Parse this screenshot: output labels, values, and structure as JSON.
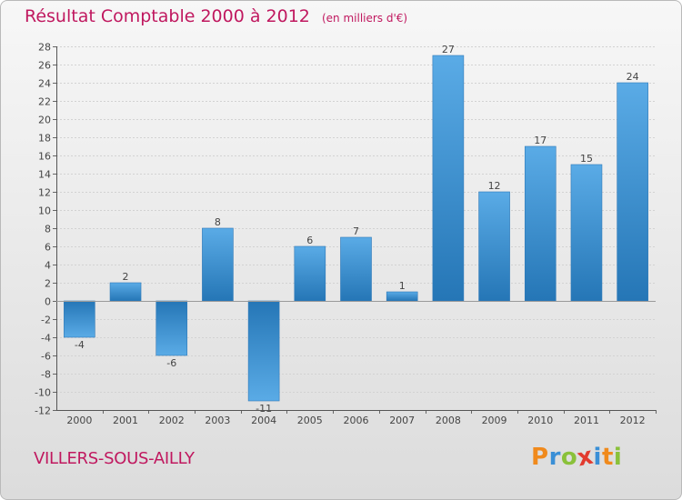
{
  "title": {
    "main": "Résultat Comptable 2000 à 2012",
    "unit": "(en milliers d'€)"
  },
  "footer": {
    "commune": "VILLERS-SOUS-AILLY",
    "logo": {
      "letters": [
        "P",
        "r",
        "o",
        "x",
        "i",
        "t",
        "i"
      ],
      "colors": [
        "#f08a1c",
        "#3a8fd6",
        "#8ac13a",
        "#e23a2e",
        "#3a8fd6",
        "#f08a1c",
        "#8ac13a"
      ]
    }
  },
  "colors": {
    "accent": "#c0185f",
    "bar_light": "#5aabe6",
    "bar_dark": "#2576b6"
  },
  "chart_data": {
    "type": "bar",
    "title": "Résultat Comptable 2000 à 2012",
    "subtitle": "(en milliers d'€)",
    "xlabel": "",
    "ylabel": "",
    "categories": [
      "2000",
      "2001",
      "2002",
      "2003",
      "2004",
      "2005",
      "2006",
      "2007",
      "2008",
      "2009",
      "2010",
      "2011",
      "2012"
    ],
    "values": [
      -4,
      2,
      -6,
      8,
      -11,
      6,
      7,
      1,
      27,
      12,
      17,
      15,
      24
    ],
    "ylim": [
      -12,
      28
    ],
    "yticks": [
      28,
      26,
      24,
      22,
      20,
      18,
      16,
      14,
      12,
      10,
      8,
      6,
      4,
      2,
      0,
      -2,
      -4,
      -6,
      -8,
      -10,
      -12
    ],
    "grid": true
  }
}
